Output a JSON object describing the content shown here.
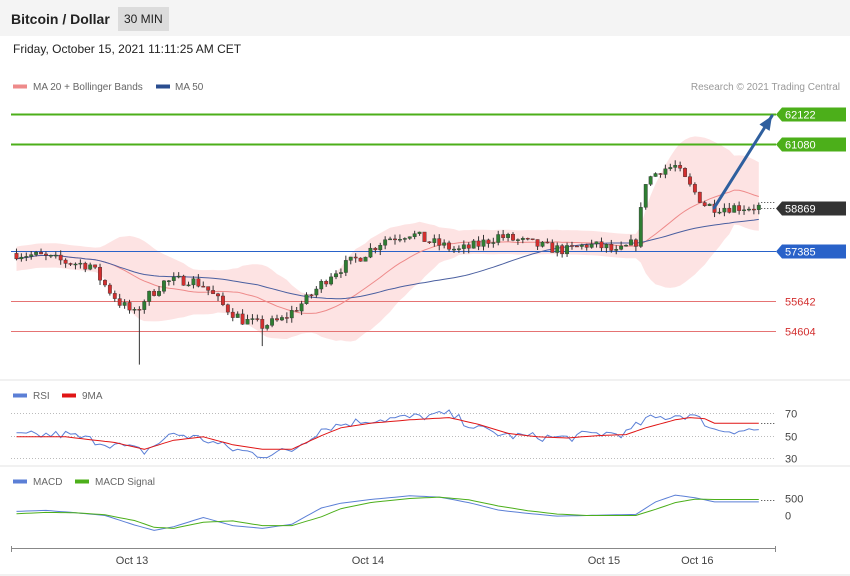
{
  "header": {
    "title": "Bitcoin / Dollar",
    "timeframe": "30 MIN",
    "datetime": "Friday, October 15, 2021 11:11:25 AM CET"
  },
  "legend": {
    "ma20": "MA 20 + Bollinger Bands",
    "ma50": "MA 50",
    "copyright": "Research © 2021 Trading Central",
    "rsi": "RSI",
    "rsi_ma": "9MA",
    "macd": "MACD",
    "macd_signal": "MACD Signal"
  },
  "colors": {
    "up": "#2e7d32",
    "down": "#d32f2f",
    "resistance": "#4caf1a",
    "support": "#e57373",
    "pivot": "#2962c9",
    "ma20": "#ee8a8a",
    "ma50": "#4a5fa0",
    "bands": "#fde3e3",
    "arrow": "#2f5f9e",
    "price_tag": "#333333"
  },
  "chart_data": {
    "type": "candlestick",
    "price_range": [
      53200,
      62600
    ],
    "levels": [
      {
        "label": "62122",
        "value": 62122,
        "kind": "resistance"
      },
      {
        "label": "61080",
        "value": 61080,
        "kind": "resistance"
      },
      {
        "label": "58869",
        "value": 58869,
        "kind": "current"
      },
      {
        "label": "57385",
        "value": 57385,
        "kind": "pivot"
      },
      {
        "label": "55642",
        "value": 55642,
        "kind": "support"
      },
      {
        "label": "54604",
        "value": 54604,
        "kind": "support"
      }
    ],
    "x_labels": [
      "Oct 13",
      "Oct 14",
      "Oct 15",
      "Oct 16"
    ],
    "x_label_positions": [
      24,
      72,
      120,
      139
    ],
    "num_bars": 155,
    "bars_drawn": 152,
    "close_path": [
      [
        0,
        57300
      ],
      [
        5,
        57200
      ],
      [
        10,
        57000
      ],
      [
        15,
        56900
      ],
      [
        18,
        56200
      ],
      [
        21,
        55600
      ],
      [
        24,
        55200
      ],
      [
        26,
        55700
      ],
      [
        30,
        56300
      ],
      [
        35,
        56400
      ],
      [
        38,
        56200
      ],
      [
        42,
        55500
      ],
      [
        46,
        55000
      ],
      [
        50,
        54800
      ],
      [
        54,
        55000
      ],
      [
        59,
        55700
      ],
      [
        64,
        56600
      ],
      [
        70,
        57200
      ],
      [
        75,
        57800
      ],
      [
        80,
        58000
      ],
      [
        84,
        57700
      ],
      [
        90,
        57400
      ],
      [
        94,
        57600
      ],
      [
        98,
        57900
      ],
      [
        103,
        57700
      ],
      [
        108,
        57500
      ],
      [
        112,
        57400
      ],
      [
        116,
        57600
      ],
      [
        120,
        57500
      ],
      [
        122,
        57300
      ],
      [
        126,
        57700
      ],
      [
        128,
        59800
      ],
      [
        131,
        60200
      ],
      [
        134,
        60300
      ],
      [
        137,
        59600
      ],
      [
        140,
        59000
      ],
      [
        142,
        58900
      ]
    ],
    "annotations": [
      {
        "type": "arrow",
        "from": [
          142,
          58869
        ],
        "to": [
          155,
          62122
        ],
        "label": ""
      }
    ],
    "rsi": {
      "ticks": [
        30,
        50,
        70
      ],
      "range": [
        25,
        78
      ],
      "path": [
        [
          0,
          50
        ],
        [
          10,
          51
        ],
        [
          20,
          42
        ],
        [
          26,
          36
        ],
        [
          32,
          52
        ],
        [
          38,
          47
        ],
        [
          44,
          38
        ],
        [
          50,
          33
        ],
        [
          56,
          37
        ],
        [
          62,
          56
        ],
        [
          66,
          60
        ],
        [
          72,
          64
        ],
        [
          80,
          66
        ],
        [
          88,
          69
        ],
        [
          94,
          56
        ],
        [
          100,
          50
        ],
        [
          106,
          49
        ],
        [
          112,
          48
        ],
        [
          118,
          52
        ],
        [
          124,
          52
        ],
        [
          128,
          64
        ],
        [
          134,
          68
        ],
        [
          137,
          68
        ],
        [
          140,
          62
        ],
        [
          142,
          55
        ]
      ],
      "ma_path": [
        [
          0,
          49
        ],
        [
          10,
          49
        ],
        [
          20,
          44
        ],
        [
          26,
          38
        ],
        [
          32,
          46
        ],
        [
          38,
          49
        ],
        [
          44,
          42
        ],
        [
          50,
          38
        ],
        [
          56,
          38
        ],
        [
          62,
          50
        ],
        [
          66,
          57
        ],
        [
          72,
          61
        ],
        [
          80,
          64
        ],
        [
          88,
          66
        ],
        [
          94,
          60
        ],
        [
          100,
          52
        ],
        [
          106,
          49
        ],
        [
          112,
          48
        ],
        [
          118,
          50
        ],
        [
          124,
          51
        ],
        [
          128,
          57
        ],
        [
          134,
          64
        ],
        [
          137,
          66
        ],
        [
          140,
          65
        ],
        [
          142,
          61
        ]
      ]
    },
    "macd": {
      "ticks": [
        0,
        500
      ],
      "range": [
        -900,
        750
      ],
      "path": [
        [
          0,
          120
        ],
        [
          6,
          150
        ],
        [
          12,
          80
        ],
        [
          18,
          0
        ],
        [
          24,
          -280
        ],
        [
          28,
          -440
        ],
        [
          32,
          -330
        ],
        [
          38,
          -60
        ],
        [
          44,
          -300
        ],
        [
          50,
          -380
        ],
        [
          56,
          -260
        ],
        [
          62,
          220
        ],
        [
          66,
          360
        ],
        [
          72,
          470
        ],
        [
          80,
          580
        ],
        [
          86,
          540
        ],
        [
          92,
          380
        ],
        [
          98,
          160
        ],
        [
          104,
          60
        ],
        [
          110,
          -20
        ],
        [
          116,
          0
        ],
        [
          122,
          20
        ],
        [
          126,
          30
        ],
        [
          130,
          400
        ],
        [
          134,
          600
        ],
        [
          138,
          520
        ],
        [
          142,
          400
        ]
      ],
      "signal_path": [
        [
          0,
          50
        ],
        [
          6,
          90
        ],
        [
          12,
          80
        ],
        [
          18,
          20
        ],
        [
          24,
          -150
        ],
        [
          28,
          -350
        ],
        [
          32,
          -380
        ],
        [
          38,
          -200
        ],
        [
          44,
          -160
        ],
        [
          50,
          -300
        ],
        [
          56,
          -300
        ],
        [
          62,
          -40
        ],
        [
          66,
          200
        ],
        [
          72,
          380
        ],
        [
          80,
          500
        ],
        [
          86,
          540
        ],
        [
          92,
          460
        ],
        [
          98,
          280
        ],
        [
          104,
          140
        ],
        [
          110,
          40
        ],
        [
          116,
          0
        ],
        [
          122,
          0
        ],
        [
          126,
          0
        ],
        [
          130,
          180
        ],
        [
          134,
          380
        ],
        [
          138,
          480
        ],
        [
          142,
          470
        ]
      ]
    }
  }
}
